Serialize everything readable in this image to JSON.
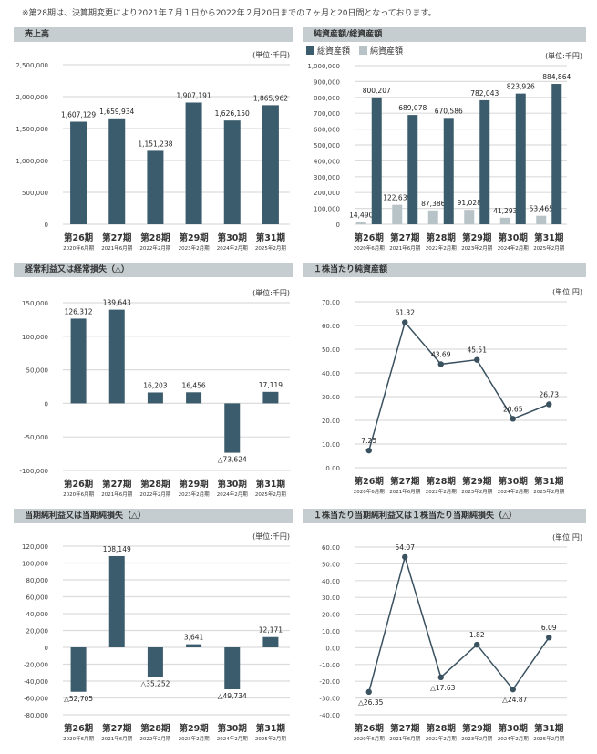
{
  "note": "※第28期は、決算期変更により2021年７月１日から2022年２月20日までの７ヶ月と20日間となっております。",
  "colors": {
    "bar_dark": "#3b5c6c",
    "bar_light": "#b8c3c8",
    "line": "#3a5160",
    "grid": "#dcdcdc",
    "header_bg": "#c5cdd0"
  },
  "chart_data": [
    {
      "type": "bar",
      "title": "売上高",
      "unit": "(単位:千円)",
      "categories": [
        "第26期",
        "第27期",
        "第28期",
        "第29期",
        "第30期",
        "第31期"
      ],
      "sublabels": [
        "2020年6月期",
        "2021年6月期",
        "2022年2月期",
        "2023年2月期",
        "2024年2月期",
        "2025年2月期"
      ],
      "series": [
        {
          "name": "売上高",
          "values": [
            1607129,
            1659934,
            1151238,
            1907191,
            1626150,
            1865962
          ]
        }
      ],
      "ylim": [
        0,
        2500000
      ],
      "ticks": [
        0,
        500000,
        1000000,
        1500000,
        2000000,
        2500000
      ],
      "decimals": 0
    },
    {
      "type": "bar",
      "title": "純資産額/総資産額",
      "unit": "(単位:千円)",
      "legend": [
        "総資産額",
        "純資産額"
      ],
      "categories": [
        "第26期",
        "第27期",
        "第28期",
        "第29期",
        "第30期",
        "第31期"
      ],
      "sublabels": [
        "2020年6月期",
        "2021年6月期",
        "2022年2月期",
        "2023年2月期",
        "2024年2月期",
        "2025年2月期"
      ],
      "series": [
        {
          "name": "純資産額",
          "values": [
            14490,
            122639,
            87386,
            91028,
            41293,
            53465
          ]
        },
        {
          "name": "総資産額",
          "values": [
            800207,
            689078,
            670586,
            782043,
            823926,
            884864
          ]
        }
      ],
      "ylim": [
        0,
        1000000
      ],
      "ticks": [
        0,
        100000,
        200000,
        300000,
        400000,
        500000,
        600000,
        700000,
        800000,
        900000,
        1000000
      ],
      "decimals": 0
    },
    {
      "type": "bar",
      "title": "経常利益又は経常損失（△）",
      "unit": "(単位:千円)",
      "categories": [
        "第26期",
        "第27期",
        "第28期",
        "第29期",
        "第30期",
        "第31期"
      ],
      "sublabels": [
        "2020年6月期",
        "2021年6月期",
        "2022年2月期",
        "2023年2月期",
        "2024年2月期",
        "2025年2月期"
      ],
      "series": [
        {
          "name": "経常利益",
          "values": [
            126312,
            139643,
            16203,
            16456,
            -73624,
            17119
          ]
        }
      ],
      "ylim": [
        -100000,
        150000
      ],
      "ticks": [
        -100000,
        -50000,
        0,
        50000,
        100000,
        150000
      ],
      "decimals": 0
    },
    {
      "type": "line",
      "title": "１株当たり純資産額",
      "unit": "(単位:円)",
      "categories": [
        "第26期",
        "第27期",
        "第28期",
        "第29期",
        "第30期",
        "第31期"
      ],
      "sublabels": [
        "2020年6月期",
        "2021年6月期",
        "2022年2月期",
        "2023年2月期",
        "2024年2月期",
        "2025年2月期"
      ],
      "series": [
        {
          "name": "１株当たり純資産額",
          "values": [
            7.25,
            61.32,
            43.69,
            45.51,
            20.65,
            26.73
          ]
        }
      ],
      "ylim": [
        0,
        70
      ],
      "ticks": [
        0,
        10,
        20,
        30,
        40,
        50,
        60,
        70
      ],
      "decimals": 2
    },
    {
      "type": "bar",
      "title": "当期純利益又は当期純損失（△）",
      "unit": "(単位:千円)",
      "categories": [
        "第26期",
        "第27期",
        "第28期",
        "第29期",
        "第30期",
        "第31期"
      ],
      "sublabels": [
        "2020年6月期",
        "2021年6月期",
        "2022年2月期",
        "2023年2月期",
        "2024年2月期",
        "2025年2月期"
      ],
      "series": [
        {
          "name": "当期純利益",
          "values": [
            -52705,
            108149,
            -35252,
            3641,
            -49734,
            12171
          ]
        }
      ],
      "ylim": [
        -80000,
        120000
      ],
      "ticks": [
        -80000,
        -60000,
        -40000,
        -20000,
        0,
        20000,
        40000,
        60000,
        80000,
        100000,
        120000
      ],
      "decimals": 0
    },
    {
      "type": "line",
      "title": "１株当たり当期純利益又は１株当たり当期純損失（△）",
      "unit": "(単位:円)",
      "categories": [
        "第26期",
        "第27期",
        "第28期",
        "第29期",
        "第30期",
        "第31期"
      ],
      "sublabels": [
        "2020年6月期",
        "2021年6月期",
        "2022年2月期",
        "2023年2月期",
        "2024年2月期",
        "2025年2月期"
      ],
      "series": [
        {
          "name": "１株当たり当期純利益",
          "values": [
            -26.35,
            54.07,
            -17.63,
            1.82,
            -24.87,
            6.09
          ]
        }
      ],
      "ylim": [
        -40,
        60
      ],
      "ticks": [
        -40,
        -30,
        -20,
        -10,
        0,
        10,
        20,
        30,
        40,
        50,
        60
      ],
      "decimals": 2
    }
  ]
}
